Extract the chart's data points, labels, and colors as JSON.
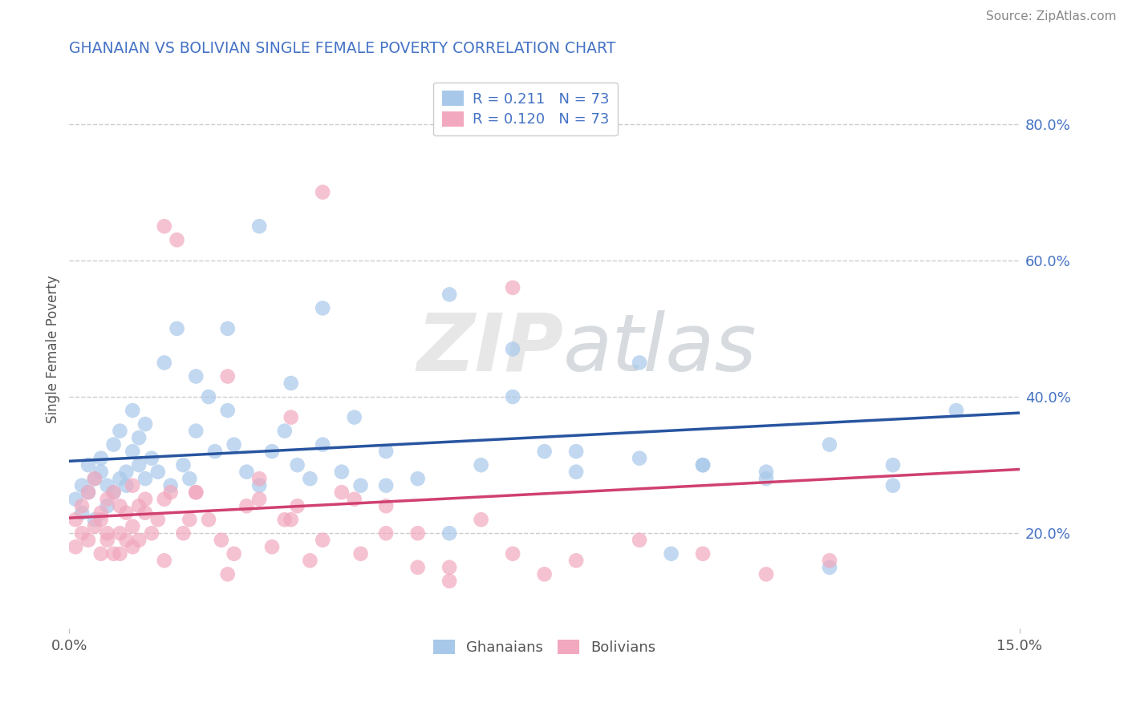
{
  "title": "GHANAIAN VS BOLIVIAN SINGLE FEMALE POVERTY CORRELATION CHART",
  "source_text": "Source: ZipAtlas.com",
  "ylabel": "Single Female Poverty",
  "xlim": [
    0.0,
    0.15
  ],
  "ylim": [
    0.06,
    0.88
  ],
  "x_ticks": [
    0.0,
    0.15
  ],
  "x_tick_labels": [
    "0.0%",
    "15.0%"
  ],
  "y_ticks": [
    0.2,
    0.4,
    0.6,
    0.8
  ],
  "y_tick_labels": [
    "20.0%",
    "40.0%",
    "60.0%",
    "80.0%"
  ],
  "ghanaian_color": "#a8c8ea",
  "bolivian_color": "#f2a8be",
  "ghanaian_line_color": "#2855a0",
  "bolivian_line_color": "#d04070",
  "R_ghanaian": 0.211,
  "R_bolivian": 0.12,
  "N": 73,
  "watermark_zip": "ZIP",
  "watermark_atlas": "atlas",
  "legend_labels": [
    "Ghanaians",
    "Bolivians"
  ],
  "title_color": "#4472c4",
  "label_color": "#555555",
  "source_color": "#888888",
  "legend_text_color": "#4472c4",
  "ghanaian_x": [
    0.001,
    0.002,
    0.002,
    0.003,
    0.003,
    0.004,
    0.004,
    0.005,
    0.005,
    0.006,
    0.006,
    0.007,
    0.007,
    0.008,
    0.008,
    0.009,
    0.009,
    0.01,
    0.01,
    0.011,
    0.011,
    0.012,
    0.012,
    0.013,
    0.014,
    0.015,
    0.016,
    0.017,
    0.018,
    0.019,
    0.02,
    0.022,
    0.023,
    0.025,
    0.026,
    0.028,
    0.03,
    0.032,
    0.034,
    0.036,
    0.038,
    0.04,
    0.043,
    0.046,
    0.05,
    0.055,
    0.06,
    0.065,
    0.07,
    0.075,
    0.08,
    0.09,
    0.095,
    0.1,
    0.11,
    0.12,
    0.13,
    0.14,
    0.03,
    0.025,
    0.02,
    0.035,
    0.04,
    0.045,
    0.05,
    0.06,
    0.07,
    0.08,
    0.09,
    0.1,
    0.11,
    0.12,
    0.13
  ],
  "ghanaian_y": [
    0.25,
    0.27,
    0.23,
    0.3,
    0.26,
    0.28,
    0.22,
    0.29,
    0.31,
    0.24,
    0.27,
    0.26,
    0.33,
    0.28,
    0.35,
    0.27,
    0.29,
    0.32,
    0.38,
    0.3,
    0.34,
    0.36,
    0.28,
    0.31,
    0.29,
    0.45,
    0.27,
    0.5,
    0.3,
    0.28,
    0.35,
    0.4,
    0.32,
    0.38,
    0.33,
    0.29,
    0.27,
    0.32,
    0.35,
    0.3,
    0.28,
    0.33,
    0.29,
    0.27,
    0.32,
    0.28,
    0.55,
    0.3,
    0.47,
    0.32,
    0.29,
    0.31,
    0.17,
    0.3,
    0.29,
    0.33,
    0.3,
    0.38,
    0.65,
    0.5,
    0.43,
    0.42,
    0.53,
    0.37,
    0.27,
    0.2,
    0.4,
    0.32,
    0.45,
    0.3,
    0.28,
    0.15,
    0.27
  ],
  "bolivian_x": [
    0.001,
    0.001,
    0.002,
    0.002,
    0.003,
    0.003,
    0.004,
    0.004,
    0.005,
    0.005,
    0.006,
    0.006,
    0.007,
    0.007,
    0.008,
    0.008,
    0.009,
    0.009,
    0.01,
    0.01,
    0.011,
    0.011,
    0.012,
    0.012,
    0.013,
    0.014,
    0.015,
    0.016,
    0.017,
    0.018,
    0.019,
    0.02,
    0.022,
    0.024,
    0.026,
    0.028,
    0.03,
    0.032,
    0.034,
    0.036,
    0.038,
    0.04,
    0.043,
    0.046,
    0.05,
    0.055,
    0.06,
    0.065,
    0.07,
    0.075,
    0.08,
    0.09,
    0.1,
    0.11,
    0.12,
    0.03,
    0.025,
    0.02,
    0.015,
    0.01,
    0.008,
    0.006,
    0.035,
    0.04,
    0.05,
    0.06,
    0.07,
    0.055,
    0.045,
    0.035,
    0.025,
    0.015,
    0.005
  ],
  "bolivian_y": [
    0.22,
    0.18,
    0.24,
    0.2,
    0.19,
    0.26,
    0.21,
    0.28,
    0.23,
    0.17,
    0.25,
    0.2,
    0.26,
    0.17,
    0.24,
    0.2,
    0.19,
    0.23,
    0.27,
    0.21,
    0.24,
    0.19,
    0.23,
    0.25,
    0.2,
    0.22,
    0.65,
    0.26,
    0.63,
    0.2,
    0.22,
    0.26,
    0.22,
    0.19,
    0.17,
    0.24,
    0.25,
    0.18,
    0.22,
    0.24,
    0.16,
    0.19,
    0.26,
    0.17,
    0.2,
    0.15,
    0.13,
    0.22,
    0.17,
    0.14,
    0.16,
    0.19,
    0.17,
    0.14,
    0.16,
    0.28,
    0.43,
    0.26,
    0.25,
    0.18,
    0.17,
    0.19,
    0.37,
    0.7,
    0.24,
    0.15,
    0.56,
    0.2,
    0.25,
    0.22,
    0.14,
    0.16,
    0.22
  ]
}
